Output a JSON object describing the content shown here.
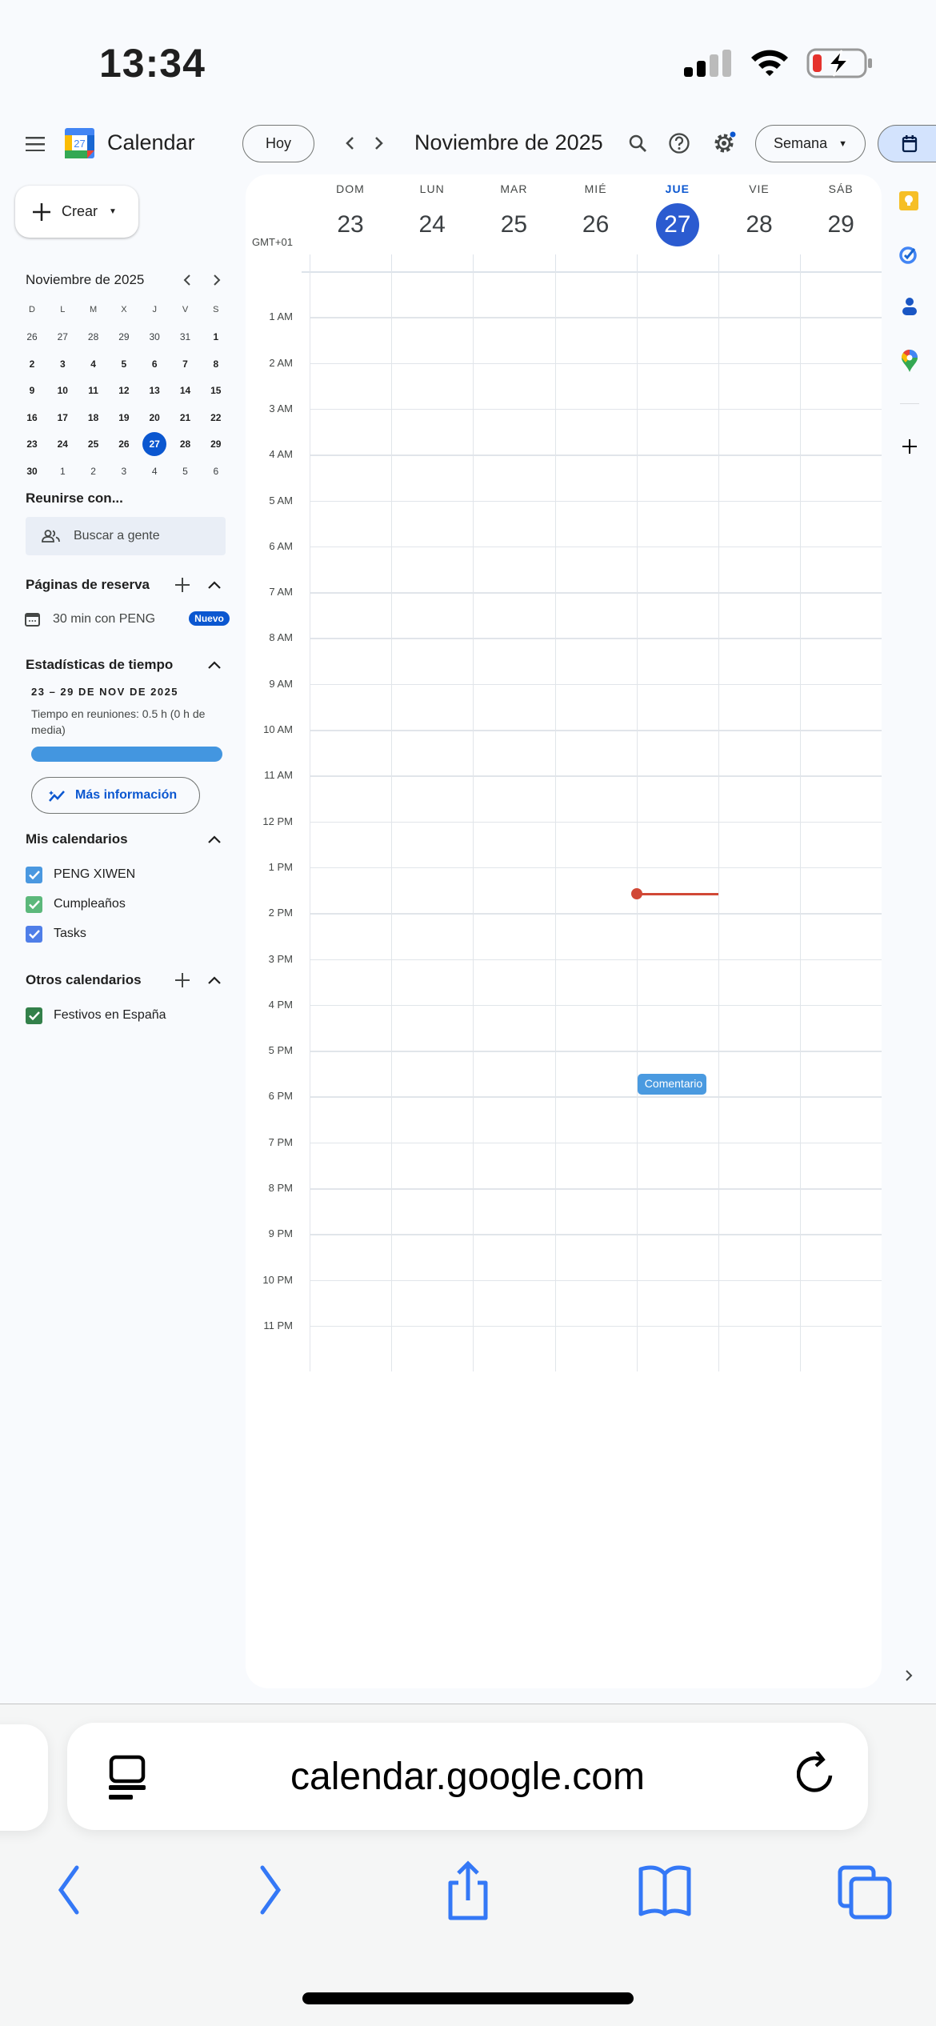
{
  "status_bar": {
    "time": "13:34",
    "battery_level": 0.15,
    "charging": true
  },
  "header": {
    "app_name": "Calendar",
    "logo_day": "27",
    "today_label": "Hoy",
    "title": "Noviembre de 2025",
    "view_selector": "Semana"
  },
  "sidebar": {
    "create_label": "Crear",
    "mini_calendar": {
      "title": "Noviembre de 2025",
      "weekdays": [
        "D",
        "L",
        "M",
        "X",
        "J",
        "V",
        "S"
      ],
      "weeks": [
        [
          "26",
          "27",
          "28",
          "29",
          "30",
          "31",
          "1"
        ],
        [
          "2",
          "3",
          "4",
          "5",
          "6",
          "7",
          "8"
        ],
        [
          "9",
          "10",
          "11",
          "12",
          "13",
          "14",
          "15"
        ],
        [
          "16",
          "17",
          "18",
          "19",
          "20",
          "21",
          "22"
        ],
        [
          "23",
          "24",
          "25",
          "26",
          "27",
          "28",
          "29"
        ],
        [
          "30",
          "1",
          "2",
          "3",
          "4",
          "5",
          "6"
        ]
      ],
      "selected": "27"
    },
    "meet_with": {
      "title": "Reunirse con...",
      "placeholder": "Buscar a gente"
    },
    "booking": {
      "title": "Páginas de reserva",
      "item": "30 min con PENG",
      "badge": "Nuevo"
    },
    "stats": {
      "title": "Estadísticas de tiempo",
      "range": "23 – 29 DE NOV DE 2025",
      "line1": "Tiempo en reuniones: 0.5 h (0 h de",
      "line2": "media)",
      "bar_fill": 1.0,
      "more_label": "Más información"
    },
    "my_calendars": {
      "title": "Mis calendarios",
      "items": [
        {
          "label": "PENG XIWEN",
          "color": "#4a98e0"
        },
        {
          "label": "Cumpleaños",
          "color": "#5cb87b"
        },
        {
          "label": "Tasks",
          "color": "#4f7ee8"
        }
      ]
    },
    "other_calendars": {
      "title": "Otros calendarios",
      "items": [
        {
          "label": "Festivos en España",
          "color": "#33804a"
        }
      ]
    }
  },
  "week": {
    "timezone": "GMT+01",
    "days": [
      {
        "name": "DOM",
        "num": "23"
      },
      {
        "name": "LUN",
        "num": "24"
      },
      {
        "name": "MAR",
        "num": "25"
      },
      {
        "name": "MIÉ",
        "num": "26"
      },
      {
        "name": "JUE",
        "num": "27",
        "today": true
      },
      {
        "name": "VIE",
        "num": "28"
      },
      {
        "name": "SÁB",
        "num": "29"
      }
    ],
    "hours": [
      "1 AM",
      "2 AM",
      "3 AM",
      "4 AM",
      "5 AM",
      "6 AM",
      "7 AM",
      "8 AM",
      "9 AM",
      "10 AM",
      "11 AM",
      "12 PM",
      "1 PM",
      "2 PM",
      "3 PM",
      "4 PM",
      "5 PM",
      "6 PM",
      "7 PM",
      "8 PM",
      "9 PM",
      "10 PM",
      "11 PM"
    ],
    "current_time": "13:35",
    "events": [
      {
        "title": "Comentario",
        "day": 4,
        "start": "17:30",
        "end": "17:57",
        "color": "#4a9ae0"
      }
    ]
  },
  "browser": {
    "url": "calendar.google.com"
  },
  "colors": {
    "accent": "#0b57d0",
    "today": "#2b5bd0",
    "now_line": "#d14836"
  }
}
